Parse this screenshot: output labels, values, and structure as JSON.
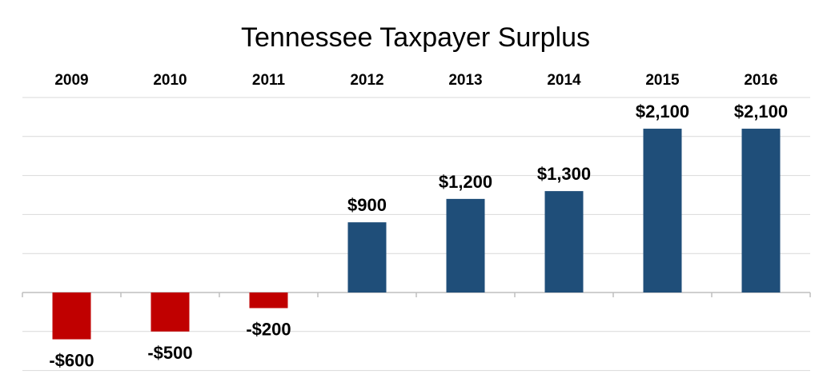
{
  "chart_data": {
    "type": "bar",
    "title": "Tennessee Taxpayer Surplus",
    "categories": [
      "2009",
      "2010",
      "2011",
      "2012",
      "2013",
      "2014",
      "2015",
      "2016"
    ],
    "values": [
      -600,
      -500,
      -200,
      900,
      1200,
      1300,
      2100,
      2100
    ],
    "value_labels": [
      "-$600",
      "-$500",
      "-$200",
      "$900",
      "$1,200",
      "$1,300",
      "$2,100",
      "$2,100"
    ],
    "xlabel": "",
    "ylabel": "",
    "ylim": [
      -1000,
      2500
    ],
    "grid": true,
    "category_labels_position": "top",
    "colors": {
      "positive": "#1f4e79",
      "negative": "#c00000",
      "grid": "#d9d9d9",
      "axis": "#bfbfbf"
    }
  }
}
